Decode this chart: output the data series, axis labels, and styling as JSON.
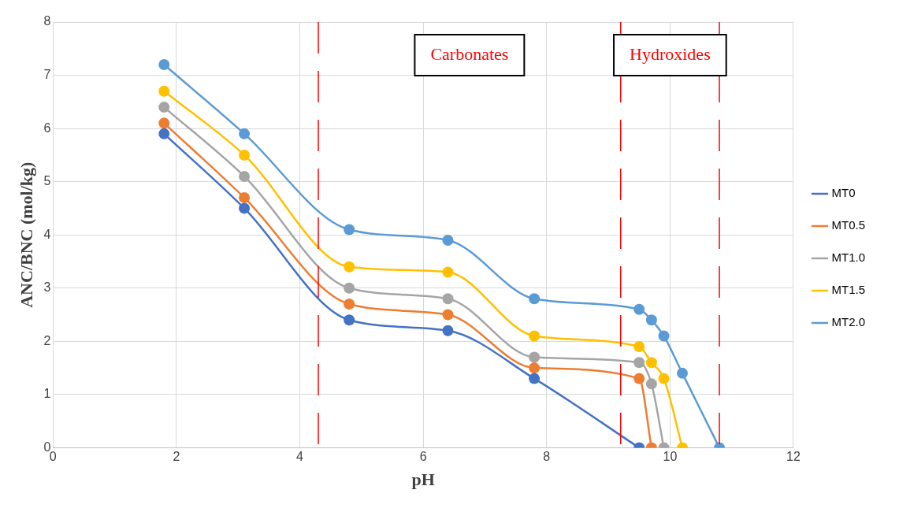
{
  "chart_data": {
    "type": "line",
    "xlabel": "pH",
    "ylabel": "ANC/BNC (mol/kg)",
    "xlim": [
      0,
      12
    ],
    "xticks": [
      0,
      2,
      4,
      6,
      8,
      10,
      12
    ],
    "ylim": [
      0,
      8
    ],
    "yticks": [
      0,
      1,
      2,
      3,
      4,
      5,
      6,
      7,
      8
    ],
    "grid": true,
    "legend": "right",
    "marker": "circle",
    "line_style": "solid",
    "series": [
      {
        "name": "MT0",
        "color": "#4472c4",
        "x": [
          1.8,
          3.1,
          4.8,
          6.4,
          7.8,
          9.5
        ],
        "values": [
          5.9,
          4.5,
          2.4,
          2.2,
          1.3,
          0
        ]
      },
      {
        "name": "MT0.5",
        "color": "#ed7d31",
        "x": [
          1.8,
          3.1,
          4.8,
          6.4,
          7.8,
          9.5,
          9.7
        ],
        "values": [
          6.1,
          4.7,
          2.7,
          2.5,
          1.5,
          1.3,
          0
        ]
      },
      {
        "name": "MT1.0",
        "color": "#a5a5a5",
        "x": [
          1.8,
          3.1,
          4.8,
          6.4,
          7.8,
          9.5,
          9.7,
          9.9
        ],
        "values": [
          6.4,
          5.1,
          3.0,
          2.8,
          1.7,
          1.6,
          1.2,
          0
        ]
      },
      {
        "name": "MT1.5",
        "color": "#ffc000",
        "x": [
          1.8,
          3.1,
          4.8,
          6.4,
          7.8,
          9.5,
          9.7,
          9.9,
          10.2
        ],
        "values": [
          6.7,
          5.5,
          3.4,
          3.3,
          2.1,
          1.9,
          1.6,
          1.3,
          0
        ]
      },
      {
        "name": "MT2.0",
        "color": "#5b9bd5",
        "x": [
          1.8,
          3.1,
          4.8,
          6.4,
          7.8,
          9.5,
          9.7,
          9.9,
          10.2,
          10.8
        ],
        "values": [
          7.2,
          5.9,
          4.1,
          3.9,
          2.8,
          2.6,
          2.4,
          2.1,
          1.4,
          0
        ]
      }
    ],
    "ref_lines": [
      {
        "axis": "x",
        "value": 4.3,
        "color": "#ff0000",
        "line_style": "dashed"
      },
      {
        "axis": "x",
        "value": 9.2,
        "color": "#ff0000",
        "line_style": "dashed"
      },
      {
        "axis": "x",
        "value": 10.8,
        "color": "#ff0000",
        "line_style": "dashed"
      }
    ],
    "annotations": [
      "Carbonates",
      "Hydroxides"
    ]
  }
}
